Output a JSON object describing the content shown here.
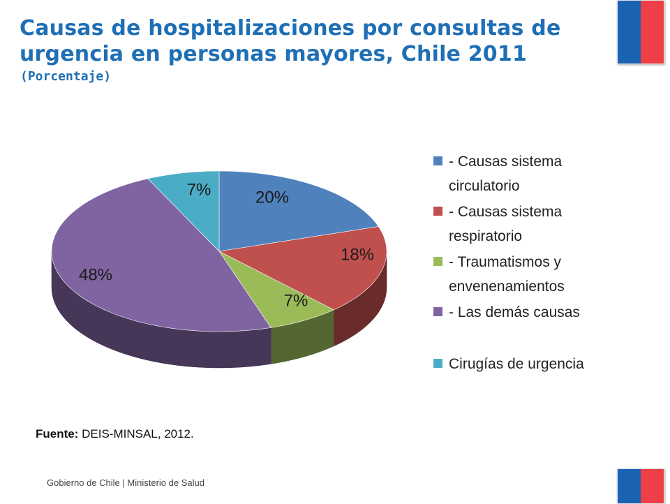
{
  "header": {
    "title": "Causas de hospitalizaciones por consultas de urgencia en personas mayores, Chile 2011",
    "subtitle": "(Porcentaje)"
  },
  "chart_data": {
    "type": "pie",
    "title": "Causas de hospitalizaciones por consultas de urgencia en personas mayores, Chile 2011",
    "subtitle": "(Porcentaje)",
    "style": "3d",
    "legend_position": "right",
    "categories": [
      "- Causas sistema circulatorio",
      "- Causas sistema respiratorio",
      "- Traumatismos y envenenamientos",
      "- Las demás causas",
      "Cirugías de urgencia"
    ],
    "values": [
      20,
      18,
      7,
      48,
      7
    ],
    "labels": [
      "20%",
      "18%",
      "7%",
      "48%",
      "7%"
    ],
    "colors": [
      "#4f81bd",
      "#c0504d",
      "#9bbb59",
      "#8064a2",
      "#4bacc6"
    ]
  },
  "legend": {
    "items": [
      {
        "label": "- Causas sistema\ncirculatorio",
        "color": "#4f81bd"
      },
      {
        "label": "- Causas sistema\nrespiratorio",
        "color": "#c0504d"
      },
      {
        "label": "- Traumatismos y\nenvenenamientos",
        "color": "#9bbb59"
      },
      {
        "label": "- Las demás causas",
        "color": "#8064a2"
      },
      {
        "label": "Cirugías de urgencia",
        "color": "#4bacc6"
      }
    ]
  },
  "source": {
    "prefix": "Fuente:",
    "text": " DEIS-MINSAL, 2012."
  },
  "footer": {
    "text": "Gobierno de Chile | Ministerio de Salud"
  },
  "brand": {
    "blue": "#1a63b3",
    "red": "#ee3e46"
  }
}
